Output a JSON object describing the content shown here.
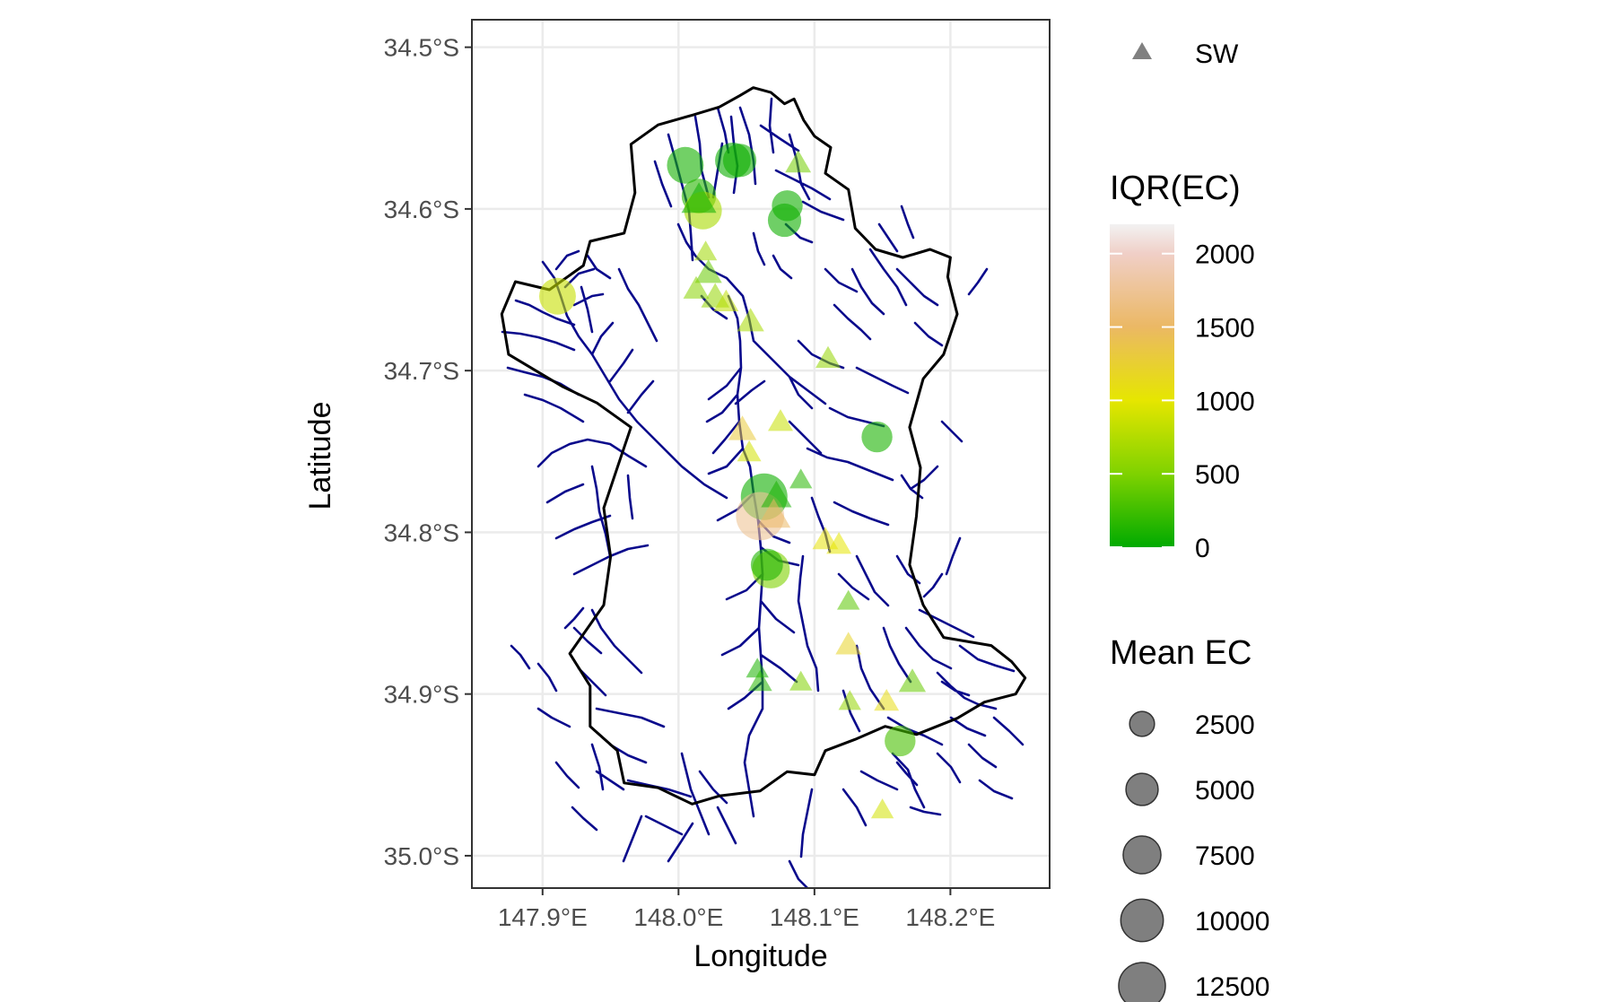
{
  "chart_data": {
    "type": "map",
    "xlabel": "Longitude",
    "ylabel": "Latitude",
    "xlim": [
      147.848,
      148.273
    ],
    "ylim": [
      -35.02,
      -34.483
    ],
    "x_ticks": [
      {
        "value": 147.9,
        "label": "147.9°E"
      },
      {
        "value": 148.0,
        "label": "148.0°E"
      },
      {
        "value": 148.1,
        "label": "148.1°E"
      },
      {
        "value": 148.2,
        "label": "148.2°E"
      }
    ],
    "y_ticks": [
      {
        "value": -34.5,
        "label": "34.5°S"
      },
      {
        "value": -34.6,
        "label": "34.6°S"
      },
      {
        "value": -34.7,
        "label": "34.7°S"
      },
      {
        "value": -34.8,
        "label": "34.8°S"
      },
      {
        "value": -34.9,
        "label": "34.9°S"
      },
      {
        "value": -35.0,
        "label": "35.0°S"
      }
    ],
    "grid": true,
    "colors": {
      "boundary": "#000000",
      "streams": "#0a0a8c",
      "panel_border": "#333333",
      "grid": "#ebebeb",
      "scale_low": "#00aa00",
      "scale_mid": "#e6e600",
      "scale_high": "#f2f2f2"
    },
    "legend_shape": {
      "label": "SW",
      "marker": "triangle-icon"
    },
    "color_scale": {
      "title": "IQR(EC)",
      "range": [
        0,
        2200
      ],
      "breaks": [
        0,
        500,
        1000,
        1500,
        2000
      ]
    },
    "size_scale": {
      "title": "Mean EC",
      "breaks": [
        2500,
        5000,
        7500,
        10000,
        12500
      ]
    },
    "catchment_boundary": [
      [
        148.03,
        -34.537
      ],
      [
        148.045,
        -34.53
      ],
      [
        148.055,
        -34.525
      ],
      [
        148.068,
        -34.528
      ],
      [
        148.078,
        -34.535
      ],
      [
        148.085,
        -34.532
      ],
      [
        148.092,
        -34.545
      ],
      [
        148.1,
        -34.555
      ],
      [
        148.112,
        -34.562
      ],
      [
        148.108,
        -34.578
      ],
      [
        148.125,
        -34.588
      ],
      [
        148.13,
        -34.612
      ],
      [
        148.145,
        -34.625
      ],
      [
        148.165,
        -34.63
      ],
      [
        148.185,
        -34.625
      ],
      [
        148.2,
        -34.63
      ],
      [
        148.198,
        -34.642
      ],
      [
        148.205,
        -34.665
      ],
      [
        148.195,
        -34.69
      ],
      [
        148.18,
        -34.705
      ],
      [
        148.17,
        -34.735
      ],
      [
        148.178,
        -34.76
      ],
      [
        148.175,
        -34.79
      ],
      [
        148.17,
        -34.82
      ],
      [
        148.18,
        -34.845
      ],
      [
        148.195,
        -34.865
      ],
      [
        148.23,
        -34.87
      ],
      [
        148.245,
        -34.88
      ],
      [
        148.255,
        -34.89
      ],
      [
        148.248,
        -34.9
      ],
      [
        148.225,
        -34.905
      ],
      [
        148.205,
        -34.915
      ],
      [
        148.175,
        -34.925
      ],
      [
        148.152,
        -34.92
      ],
      [
        148.13,
        -34.928
      ],
      [
        148.108,
        -34.935
      ],
      [
        148.1,
        -34.95
      ],
      [
        148.08,
        -34.948
      ],
      [
        148.06,
        -34.96
      ],
      [
        148.03,
        -34.963
      ],
      [
        148.01,
        -34.968
      ],
      [
        147.985,
        -34.958
      ],
      [
        147.96,
        -34.955
      ],
      [
        147.955,
        -34.935
      ],
      [
        147.935,
        -34.92
      ],
      [
        147.935,
        -34.895
      ],
      [
        147.92,
        -34.875
      ],
      [
        147.945,
        -34.845
      ],
      [
        147.95,
        -34.815
      ],
      [
        147.945,
        -34.785
      ],
      [
        147.955,
        -34.76
      ],
      [
        147.965,
        -34.735
      ],
      [
        147.94,
        -34.72
      ],
      [
        147.915,
        -34.71
      ],
      [
        147.895,
        -34.7
      ],
      [
        147.875,
        -34.69
      ],
      [
        147.87,
        -34.665
      ],
      [
        147.88,
        -34.645
      ],
      [
        147.905,
        -34.65
      ],
      [
        147.93,
        -34.635
      ],
      [
        147.935,
        -34.62
      ],
      [
        147.96,
        -34.615
      ],
      [
        147.968,
        -34.59
      ],
      [
        147.965,
        -34.56
      ],
      [
        147.985,
        -34.548
      ],
      [
        148.01,
        -34.542
      ]
    ],
    "series": [
      {
        "name": "",
        "points": [
          {
            "lon": 148.005,
            "lat": -34.573,
            "mean_ec": 7000,
            "iqr_ec": 80
          },
          {
            "lon": 148.04,
            "lat": -34.57,
            "mean_ec": 6500,
            "iqr_ec": 40
          },
          {
            "lon": 148.045,
            "lat": -34.57,
            "mean_ec": 5500,
            "iqr_ec": 60
          },
          {
            "lon": 148.015,
            "lat": -34.592,
            "mean_ec": 6000,
            "iqr_ec": 150
          },
          {
            "lon": 148.018,
            "lat": -34.601,
            "mean_ec": 7500,
            "iqr_ec": 700
          },
          {
            "lon": 148.08,
            "lat": -34.598,
            "mean_ec": 4500,
            "iqr_ec": 60
          },
          {
            "lon": 148.078,
            "lat": -34.607,
            "mean_ec": 5500,
            "iqr_ec": 60
          },
          {
            "lon": 147.911,
            "lat": -34.654,
            "mean_ec": 7000,
            "iqr_ec": 850
          },
          {
            "lon": 148.146,
            "lat": -34.741,
            "mean_ec": 4500,
            "iqr_ec": 100
          },
          {
            "lon": 148.063,
            "lat": -34.778,
            "mean_ec": 12500,
            "iqr_ec": 60
          },
          {
            "lon": 148.06,
            "lat": -34.79,
            "mean_ec": 13500,
            "iqr_ec": 1750
          },
          {
            "lon": 148.068,
            "lat": -34.823,
            "mean_ec": 7500,
            "iqr_ec": 500
          },
          {
            "lon": 148.065,
            "lat": -34.82,
            "mean_ec": 5000,
            "iqr_ec": 120
          },
          {
            "lon": 148.163,
            "lat": -34.929,
            "mean_ec": 4500,
            "iqr_ec": 280
          }
        ]
      },
      {
        "name": "SW",
        "points": [
          {
            "lon": 148.088,
            "lat": -34.572,
            "mean_ec": 2200,
            "iqr_ec": 450
          },
          {
            "lon": 148.015,
            "lat": -34.595,
            "mean_ec": 5000,
            "iqr_ec": 50
          },
          {
            "lon": 148.02,
            "lat": -34.627,
            "mean_ec": 1500,
            "iqr_ec": 650
          },
          {
            "lon": 148.022,
            "lat": -34.64,
            "mean_ec": 2500,
            "iqr_ec": 400
          },
          {
            "lon": 148.013,
            "lat": -34.65,
            "mean_ec": 2200,
            "iqr_ec": 550
          },
          {
            "lon": 148.027,
            "lat": -34.655,
            "mean_ec": 2800,
            "iqr_ec": 600
          },
          {
            "lon": 148.035,
            "lat": -34.658,
            "mean_ec": 2000,
            "iqr_ec": 800
          },
          {
            "lon": 148.053,
            "lat": -34.67,
            "mean_ec": 2500,
            "iqr_ec": 700
          },
          {
            "lon": 148.11,
            "lat": -34.693,
            "mean_ec": 2000,
            "iqr_ec": 600
          },
          {
            "lon": 148.075,
            "lat": -34.732,
            "mean_ec": 2000,
            "iqr_ec": 850
          },
          {
            "lon": 148.047,
            "lat": -34.737,
            "mean_ec": 2800,
            "iqr_ec": 1300
          },
          {
            "lon": 148.052,
            "lat": -34.751,
            "mean_ec": 1800,
            "iqr_ec": 900
          },
          {
            "lon": 148.09,
            "lat": -34.768,
            "mean_ec": 1500,
            "iqr_ec": 150
          },
          {
            "lon": 148.072,
            "lat": -34.778,
            "mean_ec": 3500,
            "iqr_ec": 90
          },
          {
            "lon": 148.07,
            "lat": -34.79,
            "mean_ec": 4500,
            "iqr_ec": 1500
          },
          {
            "lon": 148.108,
            "lat": -34.805,
            "mean_ec": 2200,
            "iqr_ec": 1050
          },
          {
            "lon": 148.118,
            "lat": -34.808,
            "mean_ec": 2000,
            "iqr_ec": 1000
          },
          {
            "lon": 148.125,
            "lat": -34.843,
            "mean_ec": 1500,
            "iqr_ec": 350
          },
          {
            "lon": 148.125,
            "lat": -34.87,
            "mean_ec": 2200,
            "iqr_ec": 1200
          },
          {
            "lon": 148.058,
            "lat": -34.885,
            "mean_ec": 1500,
            "iqr_ec": 100
          },
          {
            "lon": 148.06,
            "lat": -34.893,
            "mean_ec": 1800,
            "iqr_ec": 150
          },
          {
            "lon": 148.09,
            "lat": -34.893,
            "mean_ec": 1500,
            "iqr_ec": 500
          },
          {
            "lon": 148.172,
            "lat": -34.893,
            "mean_ec": 2500,
            "iqr_ec": 400
          },
          {
            "lon": 148.126,
            "lat": -34.905,
            "mean_ec": 1500,
            "iqr_ec": 600
          },
          {
            "lon": 148.153,
            "lat": -34.905,
            "mean_ec": 2000,
            "iqr_ec": 1100
          },
          {
            "lon": 148.15,
            "lat": -34.972,
            "mean_ec": 1500,
            "iqr_ec": 900
          }
        ]
      }
    ]
  }
}
